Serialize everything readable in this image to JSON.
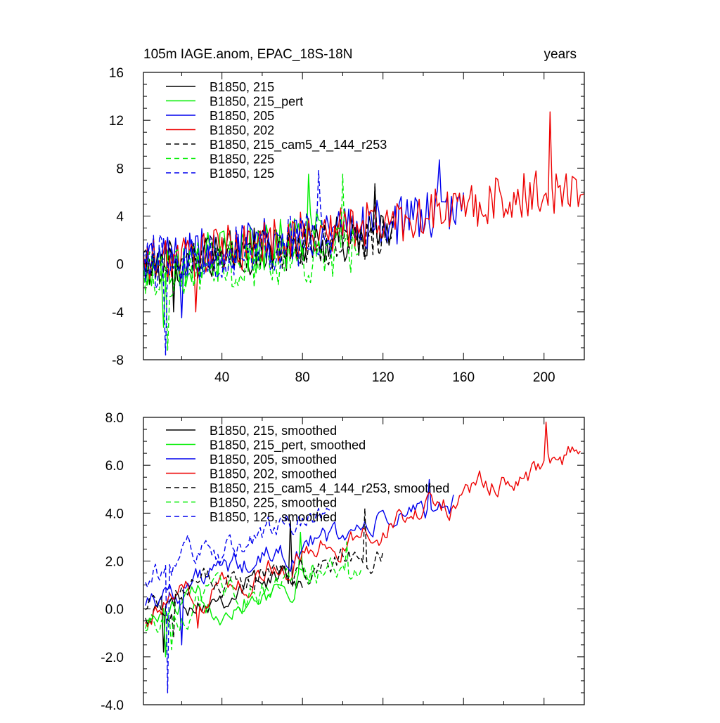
{
  "chart_data": [
    {
      "type": "line",
      "title": "105m IAGE.anom, EPAC_18S-18N",
      "right_title": "years",
      "xlabel": "",
      "ylabel": "",
      "xlim": [
        1,
        220
      ],
      "ylim": [
        -8,
        16
      ],
      "x_ticks": [
        40,
        80,
        120,
        160,
        200
      ],
      "x_tick_labels": [
        "40",
        "80",
        "120",
        "160",
        "200"
      ],
      "y_ticks": [
        -8,
        -4,
        0,
        4,
        8,
        12,
        16
      ],
      "y_tick_labels": [
        "-8",
        "-4",
        "0",
        "4",
        "8",
        "12",
        "16"
      ],
      "legend_position": "top-left",
      "series": [
        {
          "name": "B1850, 215",
          "color": "#000000",
          "dash": "solid",
          "x_start": 1,
          "x_end": 125,
          "trend_start": 0.0,
          "trend_end": 2.5,
          "noise": 2.0,
          "peak": 6.5,
          "trough": -4.0
        },
        {
          "name": "B1850, 215_pert",
          "color": "#00ee00",
          "dash": "solid",
          "x_start": 1,
          "x_end": 90,
          "trend_start": -0.5,
          "trend_end": 2.5,
          "noise": 2.2,
          "peak": 7.5,
          "trough": -5.3
        },
        {
          "name": "B1850, 205",
          "color": "#0000ee",
          "dash": "solid",
          "x_start": 1,
          "x_end": 160,
          "trend_start": 0.3,
          "trend_end": 4.5,
          "noise": 2.0,
          "peak": 8.7,
          "trough": -4.5
        },
        {
          "name": "B1850, 202",
          "color": "#ee0000",
          "dash": "solid",
          "x_start": 1,
          "x_end": 220,
          "trend_start": 0.0,
          "trend_end": 6.5,
          "noise": 2.0,
          "peak": 12.7,
          "trough": -4.0
        },
        {
          "name": "B1850, 215_cam5_4_144_r253",
          "color": "#000000",
          "dash": "dashed",
          "x_start": 1,
          "x_end": 125,
          "trend_start": 0.2,
          "trend_end": 2.2,
          "noise": 1.8,
          "peak": 6.7,
          "trough": -3.0
        },
        {
          "name": "B1850, 225",
          "color": "#00ee00",
          "dash": "dashed",
          "x_start": 1,
          "x_end": 108,
          "trend_start": -0.8,
          "trend_end": 1.0,
          "noise": 2.2,
          "peak": 7.5,
          "trough": -7.2
        },
        {
          "name": "B1850, 125",
          "color": "#0000ee",
          "dash": "dashed",
          "x_start": 1,
          "x_end": 95,
          "trend_start": 0.0,
          "trend_end": 2.5,
          "noise": 2.3,
          "peak": 7.8,
          "trough": -7.6
        }
      ]
    },
    {
      "type": "line",
      "title": "",
      "xlabel": "",
      "ylabel": "",
      "xlim": [
        1,
        220
      ],
      "ylim": [
        -4,
        8
      ],
      "x_ticks": [
        40,
        80,
        120,
        160,
        200
      ],
      "x_tick_labels": [],
      "y_ticks": [
        -4,
        -2,
        0,
        2,
        4,
        6,
        8
      ],
      "y_tick_labels": [
        "-4.0",
        "-2.0",
        "0.0",
        "2.0",
        "4.0",
        "6.0",
        "8.0"
      ],
      "legend_position": "top-left",
      "series": [
        {
          "name": "B1850, 215, smoothed",
          "color": "#000000",
          "dash": "solid",
          "x_start": 2,
          "x_end": 80,
          "trend_start": 0.0,
          "trend_end": 1.5,
          "noise": 0.8,
          "peak": 3.7,
          "trough": -1.8
        },
        {
          "name": "B1850, 215_pert, smoothed",
          "color": "#00ee00",
          "dash": "solid",
          "x_start": 2,
          "x_end": 85,
          "trend_start": -0.5,
          "trend_end": 1.5,
          "noise": 0.9,
          "peak": 3.2,
          "trough": -2.0
        },
        {
          "name": "B1850, 205, smoothed",
          "color": "#0000ee",
          "dash": "solid",
          "x_start": 2,
          "x_end": 155,
          "trend_start": 0.5,
          "trend_end": 4.5,
          "noise": 0.8,
          "peak": 5.4,
          "trough": -1.5
        },
        {
          "name": "B1850, 202, smoothed",
          "color": "#ee0000",
          "dash": "solid",
          "x_start": 2,
          "x_end": 218,
          "trend_start": -0.2,
          "trend_end": 6.5,
          "noise": 0.8,
          "peak": 7.8,
          "trough": -0.8
        },
        {
          "name": "B1850, 215_cam5_4_144_r253, smoothed",
          "color": "#000000",
          "dash": "dashed",
          "x_start": 2,
          "x_end": 120,
          "trend_start": 0.3,
          "trend_end": 2.5,
          "noise": 0.8,
          "peak": 4.2,
          "trough": -1.2
        },
        {
          "name": "B1850, 225, smoothed",
          "color": "#00ee00",
          "dash": "dashed",
          "x_start": 2,
          "x_end": 110,
          "trend_start": -0.5,
          "trend_end": 2.0,
          "noise": 0.8,
          "peak": 2.8,
          "trough": -1.7
        },
        {
          "name": "B1850, 125, smoothed",
          "color": "#0000ee",
          "dash": "dashed",
          "x_start": 2,
          "x_end": 95,
          "trend_start": 1.5,
          "trend_end": 3.8,
          "noise": 1.0,
          "peak": 4.2,
          "trough": -3.5
        }
      ]
    }
  ]
}
